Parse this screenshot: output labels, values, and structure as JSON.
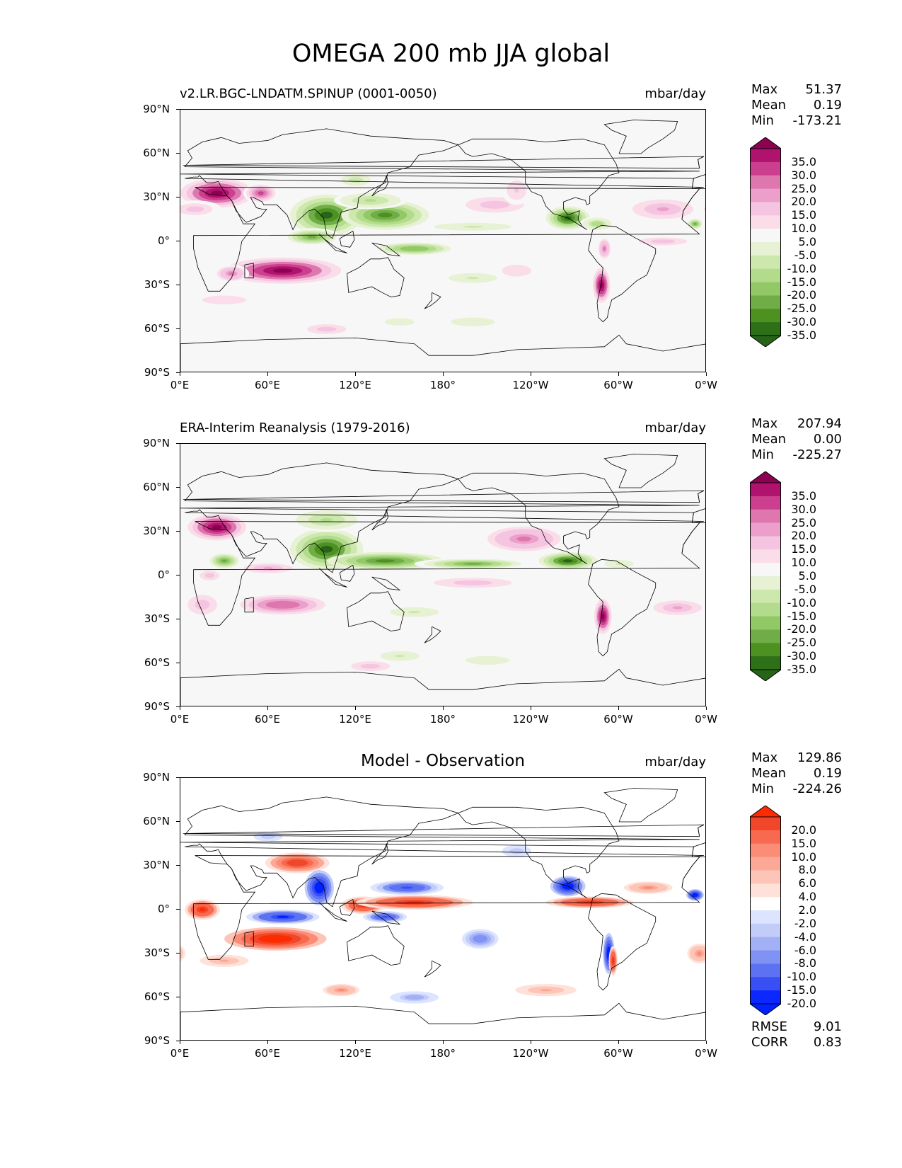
{
  "figure": {
    "title": "OMEGA 200 mb JJA global"
  },
  "axes": {
    "yticks": [
      "90°N",
      "60°N",
      "30°N",
      "0°",
      "30°S",
      "60°S",
      "90°S"
    ],
    "xticks": [
      "0°E",
      "60°E",
      "120°E",
      "180°",
      "120°W",
      "60°W",
      "0°W"
    ]
  },
  "panels": [
    {
      "title": "v2.LR.BGC-LNDATM.SPINUP (0001-0050)",
      "title_style": "left",
      "units": "mbar/day",
      "stats": {
        "max_label": "Max",
        "max": "51.37",
        "mean_label": "Mean",
        "mean": "0.19",
        "min_label": "Min",
        "min": "-173.21"
      },
      "colorbar": {
        "labels": [
          "35.0",
          "30.0",
          "25.0",
          "20.0",
          "15.0",
          "10.0",
          "5.0",
          "-5.0",
          "-10.0",
          "-15.0",
          "-20.0",
          "-25.0",
          "-30.0",
          "-35.0"
        ],
        "colors": [
          "#8e0152",
          "#b0136e",
          "#cb3f8e",
          "#de77ae",
          "#ec9fca",
          "#f4c4e0",
          "#fadde9",
          "#f7f7f7",
          "#e6f2d3",
          "#cde8ad",
          "#b2dc8c",
          "#93c867",
          "#70ad47",
          "#4d9221",
          "#2e7018",
          "#276419"
        ]
      }
    },
    {
      "title": "ERA-Interim Reanalysis (1979-2016)",
      "title_style": "left",
      "units": "mbar/day",
      "stats": {
        "max_label": "Max",
        "max": "207.94",
        "mean_label": "Mean",
        "mean": "0.00",
        "min_label": "Min",
        "min": "-225.27"
      },
      "colorbar": {
        "labels": [
          "35.0",
          "30.0",
          "25.0",
          "20.0",
          "15.0",
          "10.0",
          "5.0",
          "-5.0",
          "-10.0",
          "-15.0",
          "-20.0",
          "-25.0",
          "-30.0",
          "-35.0"
        ],
        "colors": [
          "#8e0152",
          "#b0136e",
          "#cb3f8e",
          "#de77ae",
          "#ec9fca",
          "#f4c4e0",
          "#fadde9",
          "#f7f7f7",
          "#e6f2d3",
          "#cde8ad",
          "#b2dc8c",
          "#93c867",
          "#70ad47",
          "#4d9221",
          "#2e7018",
          "#276419"
        ]
      }
    },
    {
      "title": "Model - Observation",
      "title_style": "center",
      "units": "mbar/day",
      "stats": {
        "max_label": "Max",
        "max": "129.86",
        "mean_label": "Mean",
        "mean": "0.19",
        "min_label": "Min",
        "min": "-224.26"
      },
      "colorbar": {
        "labels": [
          "20.0",
          "15.0",
          "10.0",
          "8.0",
          "6.0",
          "4.0",
          "2.0",
          "-2.0",
          "-4.0",
          "-6.0",
          "-8.0",
          "-10.0",
          "-15.0",
          "-20.0"
        ],
        "colors": [
          "#ff2b00",
          "#f0462a",
          "#f86a4f",
          "#fb8d76",
          "#fca896",
          "#fdc5b7",
          "#fee1d8",
          "#ffffff",
          "#dde4ff",
          "#c2ccf8",
          "#a2b0f5",
          "#8092f4",
          "#5d72f2",
          "#3a4ff3",
          "#0a28ff",
          "#0022ff"
        ]
      },
      "skill": {
        "rmse_label": "RMSE",
        "rmse": "9.01",
        "corr_label": "CORR",
        "corr": "0.83"
      }
    }
  ],
  "chart_data": {
    "type": "heatmap",
    "title": "OMEGA 200 mb JJA global",
    "xlim": [
      0,
      360
    ],
    "ylim": [
      -90,
      90
    ],
    "xticks": [
      "0°E",
      "60°E",
      "120°E",
      "180°",
      "120°W",
      "60°W",
      "0°W"
    ],
    "yticks": [
      "90°N",
      "60°N",
      "30°N",
      "0°",
      "30°S",
      "60°S",
      "90°S"
    ],
    "series": [
      {
        "name": "v2.LR.BGC-LNDATM.SPINUP (0001-0050)",
        "units": "mbar/day",
        "max": 51.37,
        "mean": 0.19,
        "min": -173.21,
        "features": [
          {
            "lon": 25,
            "lat": 33,
            "value": 35
          },
          {
            "lon": 60,
            "lat": 30,
            "value": 30
          },
          {
            "lon": 80,
            "lat": -20,
            "value": 35
          },
          {
            "lon": 100,
            "lat": 15,
            "value": -35
          },
          {
            "lon": 90,
            "lat": 0,
            "value": -30
          },
          {
            "lon": 150,
            "lat": 15,
            "value": -30
          },
          {
            "lon": 165,
            "lat": -5,
            "value": -25
          },
          {
            "lon": 265,
            "lat": 15,
            "value": -35
          },
          {
            "lon": 290,
            "lat": -30,
            "value": 35
          },
          {
            "lon": 215,
            "lat": 25,
            "value": 15
          },
          {
            "lon": 330,
            "lat": 20,
            "value": 15
          },
          {
            "lon": 350,
            "lat": 10,
            "value": -25
          }
        ]
      },
      {
        "name": "ERA-Interim Reanalysis (1979-2016)",
        "units": "mbar/day",
        "max": 207.94,
        "mean": 0.0,
        "min": -225.27,
        "features": [
          {
            "lon": 25,
            "lat": 33,
            "value": 35
          },
          {
            "lon": 30,
            "lat": 8,
            "value": -25
          },
          {
            "lon": 100,
            "lat": 15,
            "value": -35
          },
          {
            "lon": 130,
            "lat": 5,
            "value": -30
          },
          {
            "lon": 200,
            "lat": 7,
            "value": -25
          },
          {
            "lon": 270,
            "lat": 10,
            "value": -35
          },
          {
            "lon": 290,
            "lat": -30,
            "value": 35
          },
          {
            "lon": 70,
            "lat": -20,
            "value": 20
          },
          {
            "lon": 235,
            "lat": 25,
            "value": 20
          },
          {
            "lon": 340,
            "lat": -20,
            "value": 15
          }
        ]
      },
      {
        "name": "Model - Observation",
        "units": "mbar/day",
        "max": 129.86,
        "mean": 0.19,
        "min": -224.26,
        "rmse": 9.01,
        "corr": 0.83,
        "features": [
          {
            "lon": 15,
            "lat": 0,
            "value": 20
          },
          {
            "lon": 45,
            "lat": -20,
            "value": 20
          },
          {
            "lon": 75,
            "lat": -20,
            "value": 20
          },
          {
            "lon": 80,
            "lat": 30,
            "value": 15
          },
          {
            "lon": 95,
            "lat": 15,
            "value": -20
          },
          {
            "lon": 70,
            "lat": -5,
            "value": -20
          },
          {
            "lon": 120,
            "lat": 5,
            "value": 20
          },
          {
            "lon": 150,
            "lat": 5,
            "value": 20
          },
          {
            "lon": 160,
            "lat": 15,
            "value": -15
          },
          {
            "lon": 140,
            "lat": -5,
            "value": -15
          },
          {
            "lon": 265,
            "lat": 15,
            "value": -20
          },
          {
            "lon": 280,
            "lat": 5,
            "value": 20
          },
          {
            "lon": 295,
            "lat": -30,
            "value": -20
          },
          {
            "lon": 293,
            "lat": -35,
            "value": 20
          },
          {
            "lon": 350,
            "lat": 10,
            "value": -20
          },
          {
            "lon": 200,
            "lat": -20,
            "value": -10
          }
        ]
      }
    ]
  }
}
